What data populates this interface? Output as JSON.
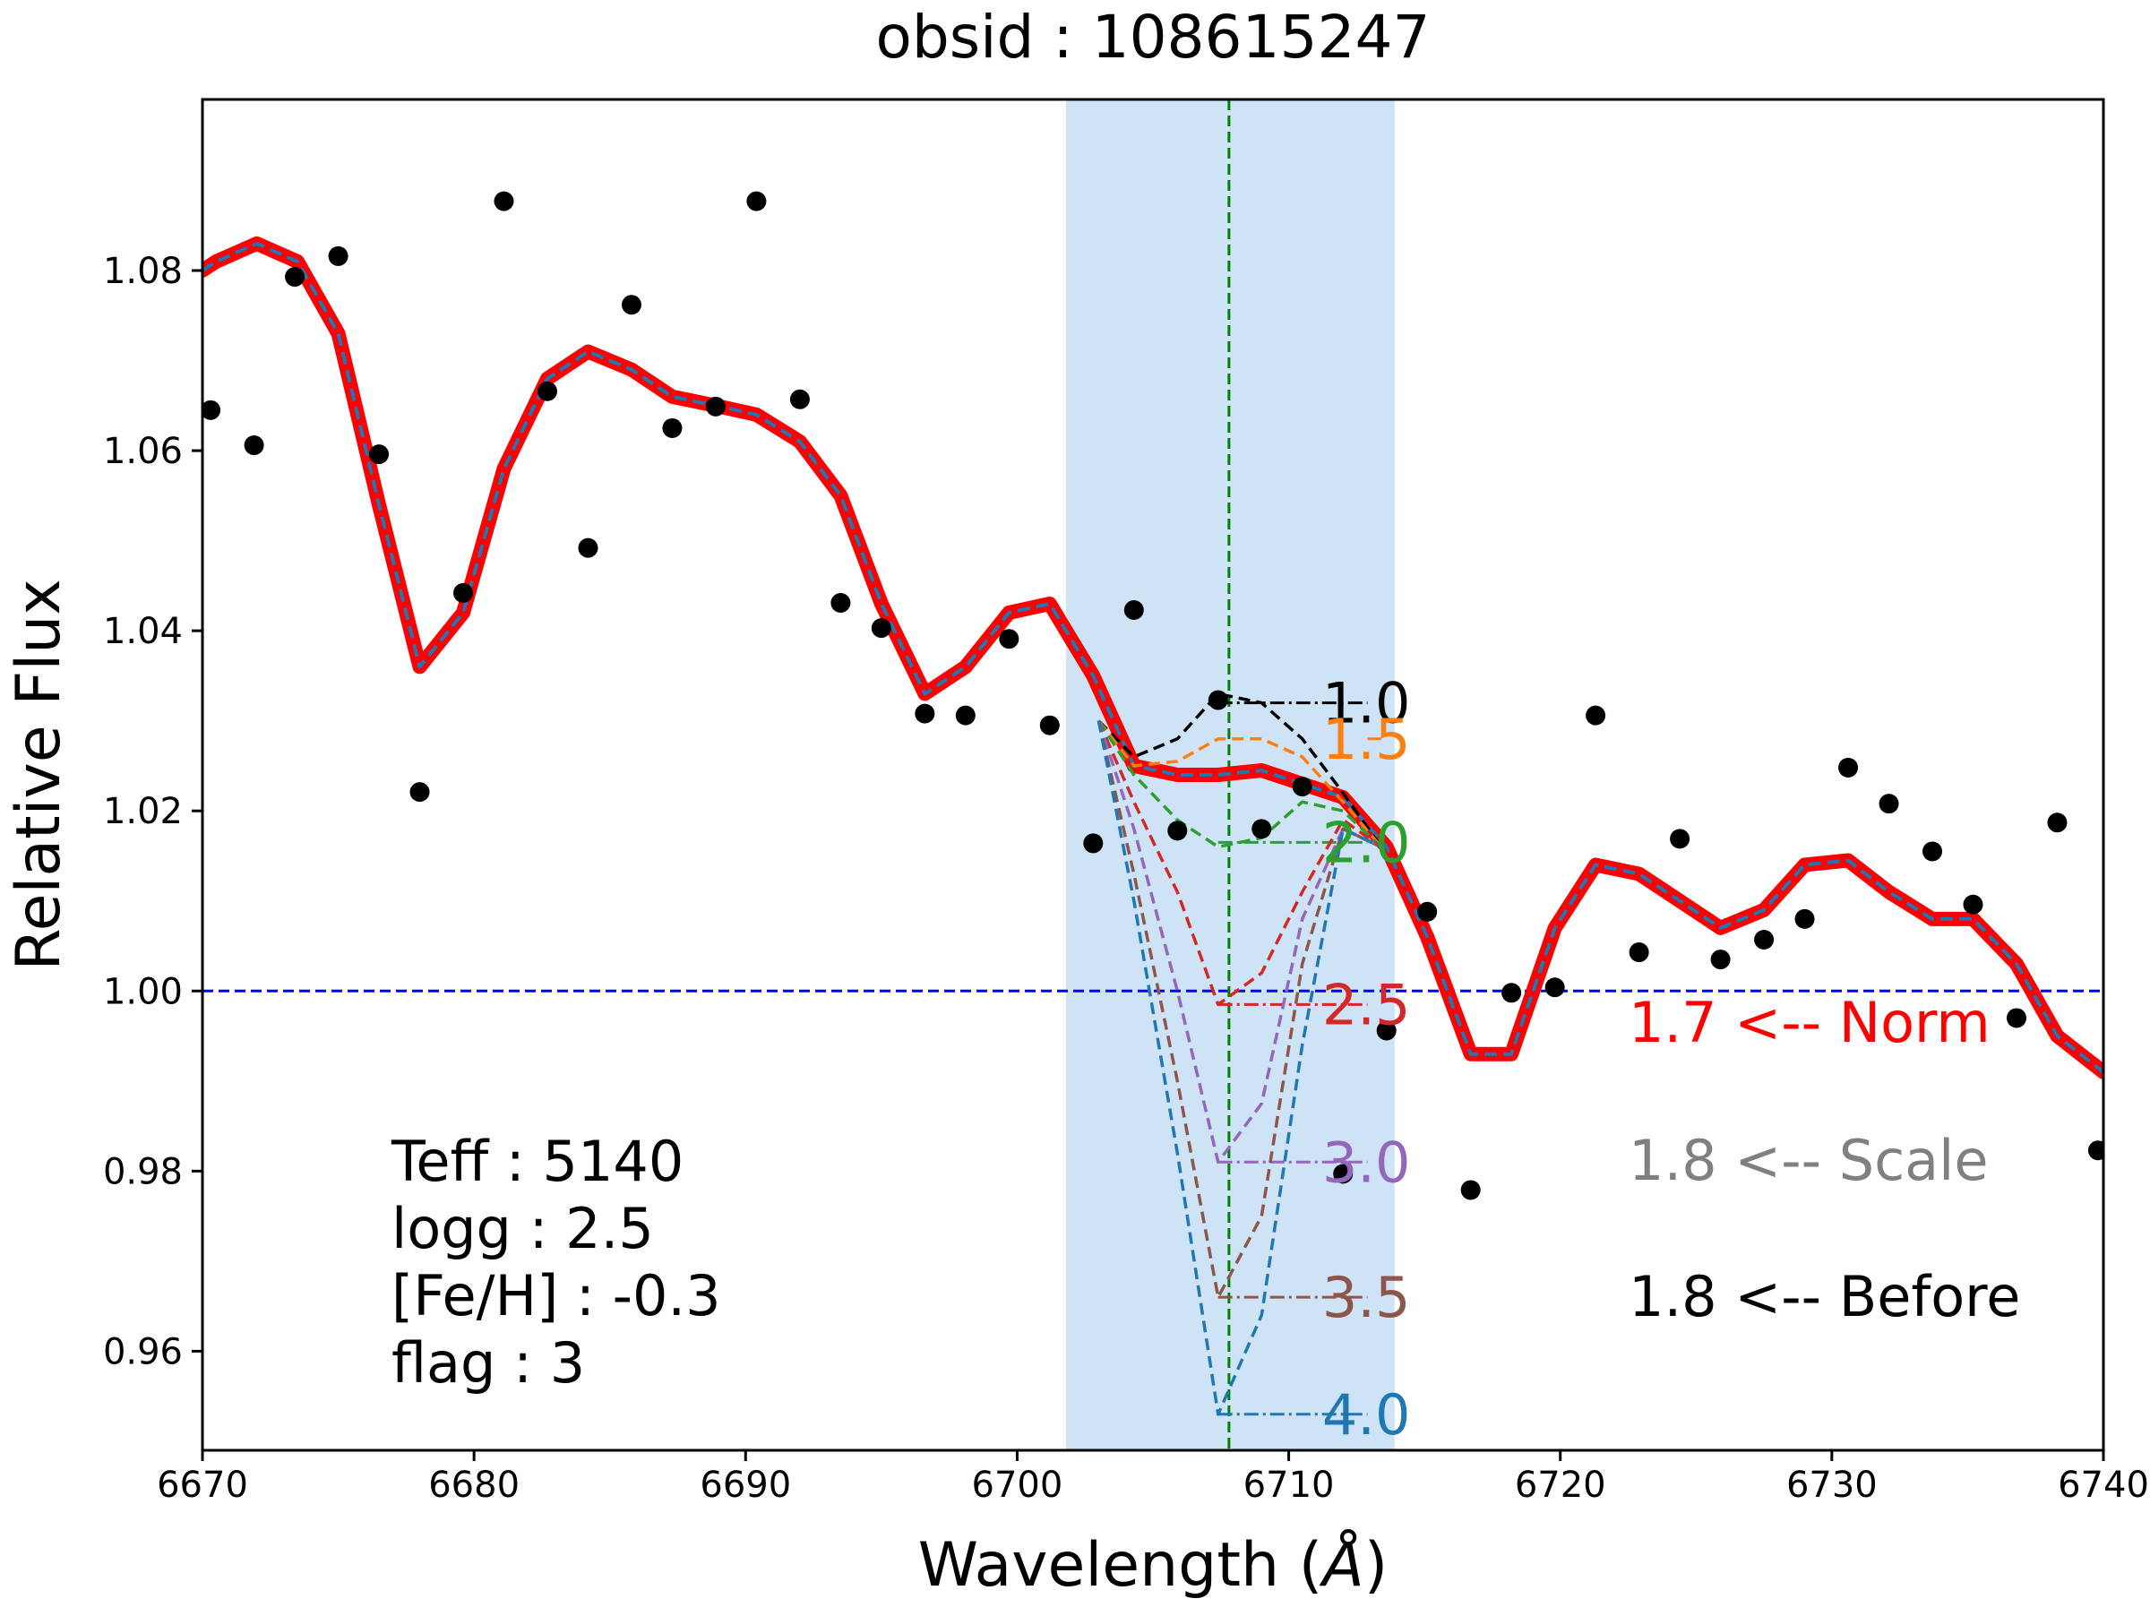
{
  "chart_data": {
    "type": "line",
    "title": "obsid : 108615247",
    "xlabel": "Wavelength (Å)",
    "ylabel": "Relative Flux",
    "xlim": [
      6670,
      6740
    ],
    "ylim": [
      0.949,
      1.099
    ],
    "grid": false,
    "x_ticks": [
      6670,
      6680,
      6690,
      6700,
      6710,
      6720,
      6730,
      6740
    ],
    "y_ticks": [
      0.96,
      0.98,
      1.0,
      1.02,
      1.04,
      1.06,
      1.08
    ],
    "y_tick_labels": [
      "0.96",
      "0.98",
      "1.00",
      "1.02",
      "1.04",
      "1.06",
      "1.08"
    ],
    "highlight_band": {
      "x_range": [
        6701.8,
        6713.9
      ],
      "color": "#cfe3f7"
    },
    "vertical_line": {
      "x": 6707.8,
      "color": "#008000",
      "style": "dashed"
    },
    "horizontal_line": {
      "y": 1.0,
      "color": "#0000ff",
      "style": "dashed"
    },
    "observed_points": {
      "color": "#000000",
      "x": [
        6670.3,
        6671.9,
        6673.4,
        6675.0,
        6676.5,
        6678.0,
        6679.6,
        6681.1,
        6682.7,
        6684.2,
        6685.8,
        6687.3,
        6688.9,
        6690.4,
        6692.0,
        6693.5,
        6695.0,
        6696.6,
        6698.1,
        6699.7,
        6701.2,
        6702.8,
        6704.3,
        6705.9,
        6707.4,
        6709.0,
        6710.5,
        6712.0,
        6713.6,
        6715.1,
        6716.7,
        6718.2,
        6719.8,
        6721.3,
        6722.9,
        6724.4,
        6725.9,
        6727.5,
        6729.0,
        6730.6,
        6732.1,
        6733.7,
        6735.2,
        6736.8,
        6738.3,
        6739.8
      ],
      "y": [
        1.0645,
        1.0606,
        1.0793,
        1.0816,
        1.0596,
        1.0221,
        1.0442,
        1.0877,
        1.0666,
        1.0492,
        1.0762,
        1.0625,
        1.0649,
        1.0877,
        1.0657,
        1.0431,
        1.0403,
        1.0308,
        1.0306,
        1.0391,
        1.0295,
        1.0164,
        1.0423,
        1.0178,
        1.0323,
        1.018,
        1.0227,
        0.9797,
        0.9956,
        1.0088,
        0.9779,
        0.9998,
        1.0004,
        1.0306,
        1.0043,
        1.0169,
        1.0035,
        1.0057,
        1.008,
        1.0248,
        1.0208,
        1.0155,
        1.0096,
        0.997,
        1.0187,
        0.9823
      ]
    },
    "fit_line": {
      "color": "#ff0000",
      "overlay_color": "#1f77b4",
      "x": [
        6670.0,
        6670.5,
        6672.0,
        6673.5,
        6675.0,
        6676.5,
        6678.0,
        6679.6,
        6681.1,
        6682.7,
        6684.2,
        6685.8,
        6687.3,
        6688.9,
        6690.4,
        6692.0,
        6693.5,
        6695.0,
        6696.6,
        6698.1,
        6699.7,
        6701.2,
        6702.8,
        6704.3,
        6705.9,
        6707.4,
        6709.0,
        6710.5,
        6712.0,
        6713.6,
        6715.1,
        6716.7,
        6718.2,
        6719.8,
        6721.3,
        6722.9,
        6724.4,
        6725.9,
        6727.5,
        6729.0,
        6730.6,
        6732.1,
        6733.7,
        6735.2,
        6736.8,
        6738.3,
        6740.0
      ],
      "y": [
        1.08,
        1.081,
        1.083,
        1.081,
        1.073,
        1.054,
        1.036,
        1.042,
        1.058,
        1.068,
        1.071,
        1.069,
        1.066,
        1.065,
        1.064,
        1.061,
        1.055,
        1.043,
        1.033,
        1.036,
        1.042,
        1.043,
        1.035,
        1.025,
        1.024,
        1.024,
        1.0245,
        1.023,
        1.0215,
        1.016,
        1.006,
        0.993,
        0.993,
        1.007,
        1.014,
        1.013,
        1.01,
        1.007,
        1.009,
        1.014,
        1.0145,
        1.011,
        1.008,
        1.008,
        1.003,
        0.995,
        0.991
      ]
    },
    "abundance_series": [
      {
        "name": "1.0",
        "color": "#000000",
        "x": [
          6703.0,
          6704.3,
          6705.9,
          6707.4,
          6709.0,
          6710.5,
          6712.0,
          6713.4
        ],
        "y": [
          1.03,
          1.026,
          1.028,
          1.033,
          1.032,
          1.028,
          1.022,
          1.016
        ],
        "level": 1.032
      },
      {
        "name": "1.5",
        "color": "#ff7f0e",
        "x": [
          6703.0,
          6704.3,
          6705.9,
          6707.4,
          6709.0,
          6710.5,
          6712.0,
          6713.4
        ],
        "y": [
          1.03,
          1.025,
          1.0255,
          1.028,
          1.028,
          1.026,
          1.021,
          1.016
        ],
        "level": 1.028
      },
      {
        "name": "2.0",
        "color": "#2ca02c",
        "x": [
          6703.0,
          6704.3,
          6705.9,
          6707.4,
          6709.0,
          6710.5,
          6712.0,
          6713.4
        ],
        "y": [
          1.03,
          1.024,
          1.019,
          1.016,
          1.017,
          1.021,
          1.02,
          1.016
        ],
        "level": 1.0165
      },
      {
        "name": "2.5",
        "color": "#d62728",
        "x": [
          6703.0,
          6704.3,
          6705.9,
          6707.4,
          6709.0,
          6710.5,
          6712.0,
          6713.4
        ],
        "y": [
          1.03,
          1.021,
          1.011,
          0.9985,
          1.002,
          1.011,
          1.019,
          1.016
        ],
        "level": 0.9985
      },
      {
        "name": "3.0",
        "color": "#9467bd",
        "x": [
          6703.0,
          6704.3,
          6705.9,
          6707.4,
          6709.0,
          6710.5,
          6712.0,
          6713.4
        ],
        "y": [
          1.03,
          1.018,
          1.0,
          0.981,
          0.9875,
          1.008,
          1.018,
          1.016
        ],
        "level": 0.981
      },
      {
        "name": "3.5",
        "color": "#8c564b",
        "x": [
          6703.0,
          6704.3,
          6705.9,
          6707.4,
          6709.0,
          6710.5,
          6712.0,
          6713.4
        ],
        "y": [
          1.03,
          1.013,
          0.99,
          0.966,
          0.975,
          1.003,
          1.018,
          1.016
        ],
        "level": 0.966
      },
      {
        "name": "4.0",
        "color": "#1f77b4",
        "x": [
          6703.0,
          6704.3,
          6705.9,
          6707.4,
          6709.0,
          6710.5,
          6712.0,
          6713.4
        ],
        "y": [
          1.03,
          1.01,
          0.982,
          0.953,
          0.964,
          0.994,
          1.018,
          1.016
        ],
        "level": 0.953
      }
    ],
    "annotations": {
      "norm": {
        "text": "1.7 <-- Norm",
        "color": "#ff0000"
      },
      "scale": {
        "text": "1.8 <-- Scale",
        "color": "#808080"
      },
      "before": {
        "text": "1.8 <-- Before",
        "color": "#000000"
      },
      "params": [
        "Teff : 5140",
        "logg : 2.5",
        "[Fe/H] : -0.3",
        "flag : 3"
      ]
    }
  }
}
